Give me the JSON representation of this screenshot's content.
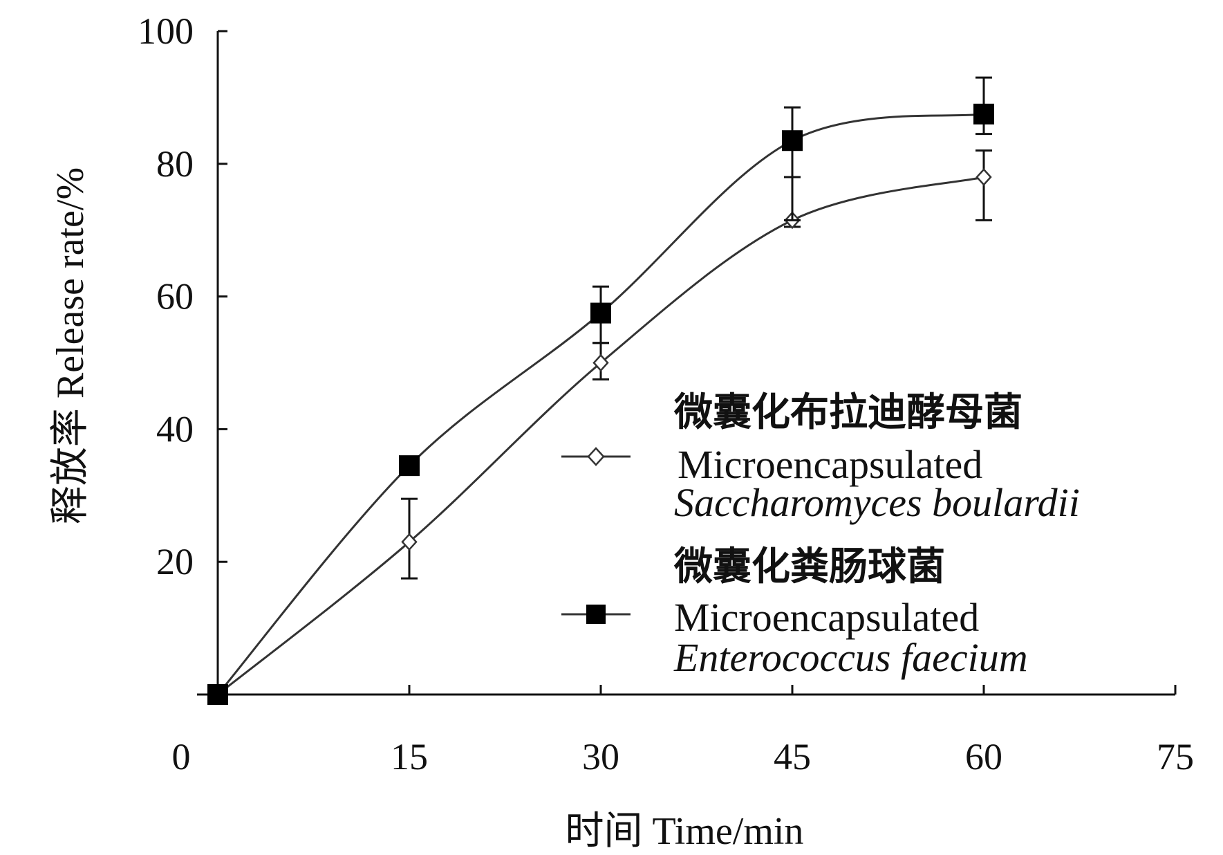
{
  "chart_data": {
    "type": "line",
    "xlabel": "时间 Time/min",
    "ylabel": "释放率 Release rate/%",
    "xlim": [
      0,
      75
    ],
    "ylim": [
      0,
      100
    ],
    "x_ticks": [
      0,
      15,
      30,
      45,
      60,
      75
    ],
    "y_ticks": [
      20,
      40,
      60,
      80,
      100
    ],
    "grid": false,
    "legend_position": "center-right",
    "x": [
      0,
      15,
      30,
      45,
      60
    ],
    "series": [
      {
        "name_cn": "微囊化布拉迪酵母菌",
        "name_en_line1": "Microencapsulated",
        "name_en_line2": "Saccharomyces boulardii",
        "marker": "open-diamond",
        "values": [
          0,
          23,
          50,
          71.5,
          78
        ],
        "err_low": [
          0,
          17.5,
          47.5,
          70.5,
          71.5
        ],
        "err_high": [
          0,
          29.5,
          53,
          78,
          82
        ]
      },
      {
        "name_cn": "微囊化粪肠球菌",
        "name_en_line1": "Microencapsulated",
        "name_en_line2": "Enterococcus faecium",
        "marker": "filled-square",
        "values": [
          0,
          34.5,
          57.5,
          83.5,
          87.5
        ],
        "err_low": [
          0,
          34.5,
          53,
          71.5,
          84.5
        ],
        "err_high": [
          0,
          34.5,
          61.5,
          88.5,
          93
        ]
      }
    ],
    "colors": {
      "line": "#333333",
      "marker_fill": "#000000",
      "axis": "#111111"
    }
  }
}
